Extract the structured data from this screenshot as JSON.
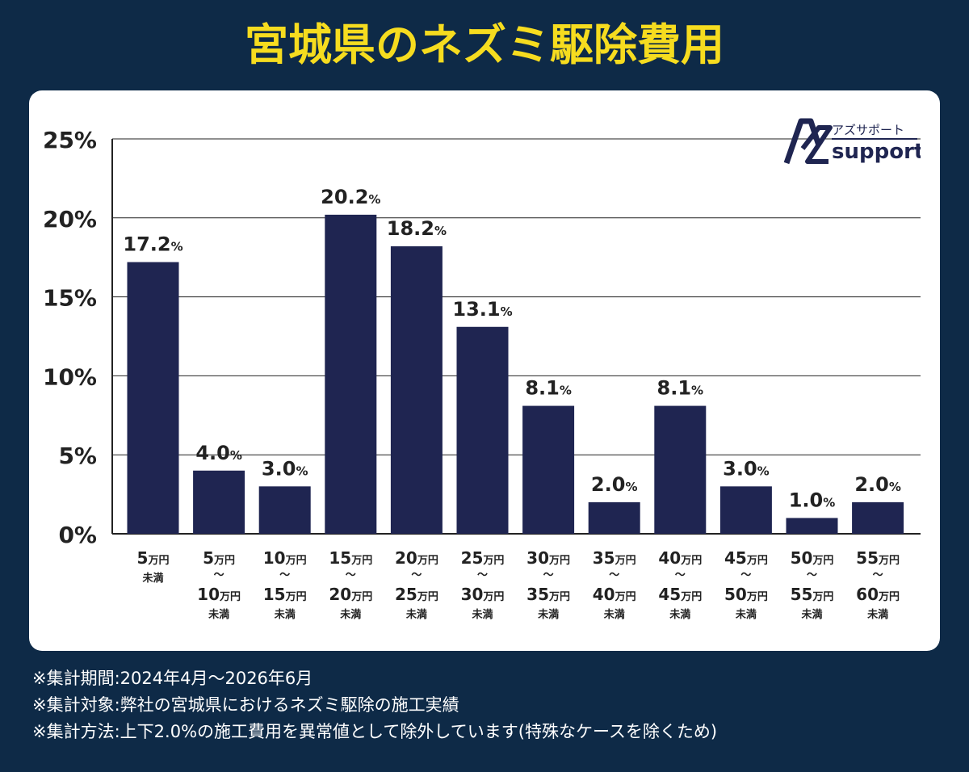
{
  "title": "宮城県のネズミ駆除費用",
  "logo": {
    "kana": "アズサポート",
    "word": "support",
    "mark": "AZ"
  },
  "colors": {
    "background": "#0e2a47",
    "bar": "#1f2551",
    "title": "#f6dc1f",
    "grid": "#222222"
  },
  "notes": [
    "※集計期間:2024年4月〜2026年6月",
    "※集計対象:弊社の宮城県におけるネズミ駆除の施工実績",
    "※集計方法:上下2.0%の施工費用を異常値として除外しています(特殊なケースを除くため)"
  ],
  "chart_data": {
    "type": "bar",
    "ylim": [
      0,
      25
    ],
    "yticks": [
      0,
      5,
      10,
      15,
      20,
      25
    ],
    "ytick_labels": [
      "0%",
      "5%",
      "10%",
      "15%",
      "20%",
      "25%"
    ],
    "grid": true,
    "value_unit": "%",
    "values": [
      17.2,
      4.0,
      3.0,
      20.2,
      18.2,
      13.1,
      8.1,
      2.0,
      8.1,
      3.0,
      1.0,
      2.0
    ],
    "value_labels": [
      "17.2",
      "4.0",
      "3.0",
      "20.2",
      "18.2",
      "13.1",
      "8.1",
      "2.0",
      "8.1",
      "3.0",
      "1.0",
      "2.0"
    ],
    "categories": [
      {
        "from": null,
        "to": "5",
        "unit": "万円",
        "suffix": "未満"
      },
      {
        "from": "5",
        "to": "10",
        "unit": "万円",
        "suffix": "未満"
      },
      {
        "from": "10",
        "to": "15",
        "unit": "万円",
        "suffix": "未満"
      },
      {
        "from": "15",
        "to": "20",
        "unit": "万円",
        "suffix": "未満"
      },
      {
        "from": "20",
        "to": "25",
        "unit": "万円",
        "suffix": "未満"
      },
      {
        "from": "25",
        "to": "30",
        "unit": "万円",
        "suffix": "未満"
      },
      {
        "from": "30",
        "to": "35",
        "unit": "万円",
        "suffix": "未満"
      },
      {
        "from": "35",
        "to": "40",
        "unit": "万円",
        "suffix": "未満"
      },
      {
        "from": "40",
        "to": "45",
        "unit": "万円",
        "suffix": "未満"
      },
      {
        "from": "45",
        "to": "50",
        "unit": "万円",
        "suffix": "未満"
      },
      {
        "from": "50",
        "to": "55",
        "unit": "万円",
        "suffix": "未満"
      },
      {
        "from": "55",
        "to": "60",
        "unit": "万円",
        "suffix": "未満"
      }
    ]
  }
}
